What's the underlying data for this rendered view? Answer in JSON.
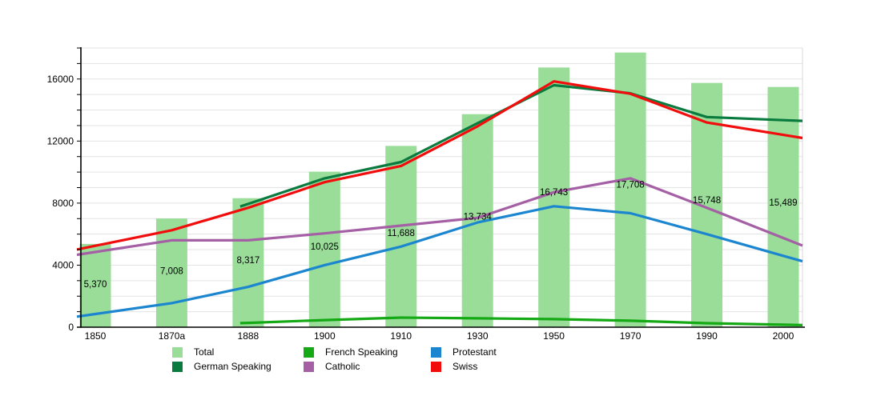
{
  "chart_data": {
    "type": "bar+line",
    "title": "",
    "xlabel": "",
    "ylabel": "",
    "x_categories": [
      "1850",
      "1870a",
      "1888",
      "1900",
      "1910",
      "1930",
      "1950",
      "1970",
      "1990",
      "2000"
    ],
    "y_axis": {
      "min": 0,
      "max": 18000,
      "gridline_every": 1000,
      "tick_every": 1000,
      "labeled_ticks": [
        0,
        4000,
        8000,
        12000,
        16000
      ],
      "labeled_tick_texts": [
        "0",
        "4000",
        "8000",
        "12000",
        "16000"
      ],
      "grid": true
    },
    "bars": {
      "name": "Total",
      "color": "#99dd99",
      "values": [
        5370,
        7008,
        8317,
        10025,
        11688,
        13734,
        16743,
        17708,
        15748,
        15489
      ],
      "value_labels": [
        "5,370",
        "7,008",
        "8,317",
        "10,025",
        "11,688",
        "13,734",
        "16,743",
        "17,708",
        "15,748",
        "15,489"
      ]
    },
    "series": [
      {
        "name": "French Speaking",
        "color": "#15a915",
        "values": [
          null,
          null,
          280,
          460,
          620,
          570,
          520,
          420,
          260,
          160
        ]
      },
      {
        "name": "Protestant",
        "color": "#1b86cf",
        "values": [
          850,
          1550,
          2600,
          4000,
          5200,
          6750,
          7800,
          7350,
          6000,
          4600
        ]
      },
      {
        "name": "Catholic",
        "color": "#a55fa5",
        "values": [
          4850,
          5600,
          5600,
          6050,
          6550,
          7050,
          8700,
          9600,
          7700,
          5750
        ]
      },
      {
        "name": "German Speaking",
        "color": "#0a7b3e",
        "values": [
          null,
          null,
          7950,
          9600,
          10650,
          13150,
          15600,
          15080,
          13550,
          13350
        ]
      },
      {
        "name": "Swiss",
        "color": "#f20d0d",
        "values": [
          5250,
          6250,
          7700,
          9350,
          10400,
          12950,
          15850,
          15050,
          13200,
          12400
        ]
      }
    ],
    "legend_position": "bottom"
  },
  "legend": {
    "items": [
      {
        "label": "Total",
        "color": "#99dd99"
      },
      {
        "label": "German Speaking",
        "color": "#0a7b3e"
      },
      {
        "label": "French Speaking",
        "color": "#15a915"
      },
      {
        "label": "Catholic",
        "color": "#a55fa5"
      },
      {
        "label": "Protestant",
        "color": "#1b86cf"
      },
      {
        "label": "Swiss",
        "color": "#f20d0d"
      }
    ]
  }
}
